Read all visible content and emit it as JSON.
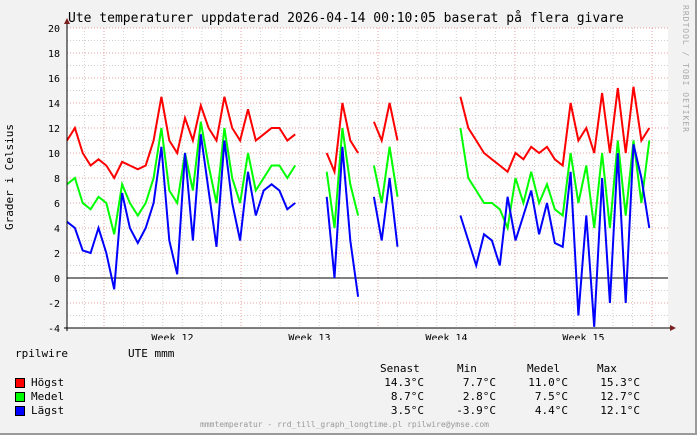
{
  "chart_data": {
    "type": "line",
    "title": "Ute temperaturer uppdaterad 2026-04-14 00:10:05 baserat på flera givare",
    "ylabel": "Grader i Celsius",
    "xlabel": "",
    "ylim": [
      -4,
      20
    ],
    "yticks": [
      -4,
      -2,
      0,
      2,
      4,
      6,
      8,
      10,
      12,
      14,
      16,
      18,
      20
    ],
    "xtick_labels": [
      "Week 12",
      "Week 13",
      "Week 14",
      "Week 15"
    ],
    "grid": true,
    "legend_position": "bottom-left",
    "series": [
      {
        "name": "Högst",
        "color": "#ff0000",
        "values": [
          11,
          12,
          10,
          9,
          9.5,
          9,
          8,
          9.3,
          9,
          8.7,
          9,
          11,
          14.5,
          11,
          10,
          12.8,
          11,
          13.8,
          12,
          11,
          14.5,
          12,
          11,
          13.5,
          11,
          11.5,
          12,
          12,
          11,
          11.5,
          null,
          null,
          null,
          10,
          8.5,
          14,
          11,
          10,
          null,
          12.5,
          11,
          14,
          11,
          null,
          null,
          null,
          null,
          null,
          null,
          null,
          14.5,
          12,
          11,
          10,
          9.5,
          9,
          8.5,
          10,
          9.5,
          10.5,
          10,
          10.5,
          9.5,
          9,
          14,
          11,
          12,
          10,
          14.8,
          10,
          15.2,
          10,
          15.3,
          11,
          12,
          null,
          14.5
        ]
      },
      {
        "name": "Medel",
        "color": "#00ff00",
        "values": [
          7.5,
          8,
          6,
          5.5,
          6.5,
          6,
          3.5,
          7.5,
          6,
          5,
          6,
          8,
          12,
          7,
          6,
          10,
          7,
          12.5,
          9,
          6,
          12,
          8,
          6,
          10,
          7,
          8,
          9,
          9,
          8,
          9,
          null,
          null,
          null,
          8.5,
          4,
          12,
          7.5,
          5,
          null,
          9,
          6,
          10.5,
          6.5,
          null,
          null,
          null,
          null,
          null,
          null,
          null,
          12,
          8,
          7,
          6,
          6,
          5.5,
          4,
          8,
          6,
          8.5,
          6,
          7.5,
          5.5,
          5,
          10,
          6,
          9,
          4,
          10,
          4,
          11,
          5,
          11,
          6,
          11,
          null,
          11
        ]
      },
      {
        "name": "Lägst",
        "color": "#0000ff",
        "values": [
          4.5,
          4,
          2.2,
          2,
          4,
          2,
          -0.9,
          6.8,
          4,
          2.8,
          4,
          6,
          10.5,
          3,
          0.3,
          10,
          3,
          11.5,
          7,
          2.5,
          11,
          6,
          3,
          8.5,
          5,
          7,
          7.5,
          7,
          5.5,
          6,
          null,
          null,
          null,
          6.5,
          0,
          10.5,
          3,
          -1.5,
          null,
          6.5,
          3,
          8,
          2.5,
          null,
          null,
          null,
          null,
          null,
          null,
          null,
          5,
          3,
          1,
          3.5,
          3,
          1,
          6.5,
          3,
          5,
          7,
          3.5,
          6,
          2.8,
          2.5,
          8.5,
          -3,
          5,
          -3.9,
          8,
          -2,
          10,
          -2,
          10.7,
          8,
          4,
          null,
          3.5
        ]
      }
    ]
  },
  "header": {
    "title": "Ute temperaturer uppdaterad 2026-04-14 00:10:05 baserat på flera givare",
    "watermark": "RRDTOOL / TOBI OETIKER"
  },
  "axes": {
    "ylabel": "Grader i Celsius",
    "yticks": [
      "20",
      "18",
      "16",
      "14",
      "12",
      "10",
      "8",
      "6",
      "4",
      "2",
      "0",
      "-2",
      "-4"
    ],
    "xticks": [
      "Week 12",
      "Week 13",
      "Week 14",
      "Week 15"
    ]
  },
  "legend": {
    "source": "rpilwire",
    "sensor": "UTE mmm",
    "columns": [
      "Senast",
      "Min",
      "Medel",
      "Max"
    ],
    "rows": [
      {
        "label": "Högst",
        "color": "#ff0000",
        "senast": "14.3°C",
        "min": "7.7°C",
        "medel": "11.0°C",
        "max": "15.3°C"
      },
      {
        "label": "Medel",
        "color": "#00ff00",
        "senast": "8.7°C",
        "min": "2.8°C",
        "medel": "7.5°C",
        "max": "12.7°C"
      },
      {
        "label": "Lägst",
        "color": "#0000ff",
        "senast": "3.5°C",
        "min": "-3.9°C",
        "medel": "4.4°C",
        "max": "12.1°C"
      }
    ]
  },
  "footer": "mmmtemperatur - rrd_till_graph_longtime.pl rpilwire@ymse.com"
}
